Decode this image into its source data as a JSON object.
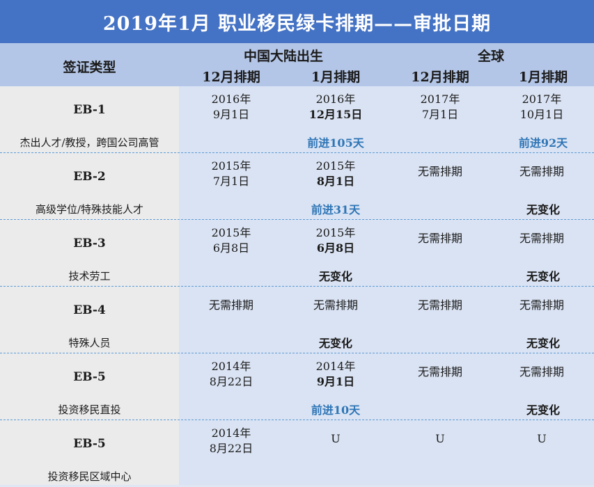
{
  "title": "2019年1月  职业移民绿卡排期——审批日期",
  "header": {
    "visa_type": "签证类型",
    "china": "中国大陆出生",
    "global": "全球",
    "china_dec": "12月排期",
    "china_jan": "1月排期",
    "global_dec": "12月排期",
    "global_jan": "1月排期"
  },
  "rows": [
    {
      "visa": "EB-1",
      "desc": "杰出人才/教授，跨国公司高管",
      "china_dec": [
        "2016年",
        "9月1日"
      ],
      "china_jan": [
        "2016年",
        "12月15日"
      ],
      "global_dec": [
        "2017年",
        "7月1日"
      ],
      "global_jan": [
        "2017年",
        "10月1日"
      ],
      "china_note": "前进105天",
      "global_note": "前进92天"
    },
    {
      "visa": "EB-2",
      "desc": "高级学位/特殊技能人才",
      "china_dec": [
        "2015年",
        "7月1日"
      ],
      "china_jan": [
        "2015年",
        "8月1日"
      ],
      "global_dec": [
        "无需排期"
      ],
      "global_jan": [
        "无需排期"
      ],
      "china_note": "前进31天",
      "global_note": "无变化"
    },
    {
      "visa": "EB-3",
      "desc": "技术劳工",
      "china_dec": [
        "2015年",
        "6月8日"
      ],
      "china_jan": [
        "2015年",
        "6月8日"
      ],
      "global_dec": [
        "无需排期"
      ],
      "global_jan": [
        "无需排期"
      ],
      "china_note": "无变化",
      "global_note": "无变化"
    },
    {
      "visa": "EB-4",
      "desc": "特殊人员",
      "china_dec": [
        "无需排期"
      ],
      "china_jan": [
        "无需排期"
      ],
      "global_dec": [
        "无需排期"
      ],
      "global_jan": [
        "无需排期"
      ],
      "china_note": "无变化",
      "global_note": "无变化"
    },
    {
      "visa": "EB-5",
      "desc": "投资移民直投",
      "china_dec": [
        "2014年",
        "8月22日"
      ],
      "china_jan": [
        "2014年",
        "9月1日"
      ],
      "global_dec": [
        "无需排期"
      ],
      "global_jan": [
        "无需排期"
      ],
      "china_note": "前进10天",
      "global_note": "无变化"
    },
    {
      "visa": "EB-5",
      "desc": "投资移民区域中心",
      "china_dec": [
        "2014年",
        "8月22日"
      ],
      "china_jan": [
        "U"
      ],
      "global_dec": [
        "U"
      ],
      "global_jan": [
        "U"
      ],
      "china_note": "",
      "global_note": ""
    }
  ],
  "colors": {
    "title_bg": "#4472c4",
    "header_bg": "#b4c6e7",
    "left_bg": "#ebebeb",
    "right_bg": "#dae3f3",
    "advance_text": "#2e75b6",
    "separator": "#5b9bd5"
  }
}
